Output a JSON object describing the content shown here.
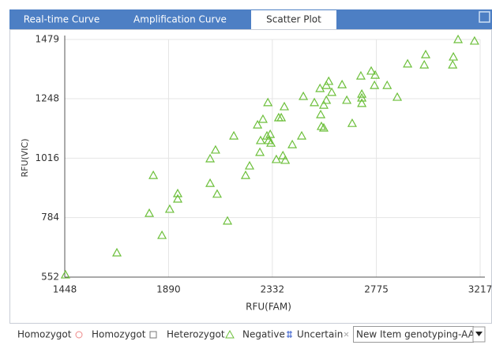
{
  "tabs": [
    "Real-time Curve",
    "Amplification Curve",
    "Scatter Plot"
  ],
  "chart_data": {
    "type": "scatter",
    "x_label": "RFU(FAM)",
    "y_label": "RFU(VIC)",
    "color": "#6cbf3a",
    "grid": true,
    "xlim": [
      1448,
      3217
    ],
    "xticks": [
      1448,
      1890,
      2332,
      2775,
      3217
    ],
    "ylim": [
      552,
      1479
    ],
    "yticks": [
      552,
      784,
      1016,
      1248,
      1479
    ],
    "series": [
      {
        "name": "Heterozygot",
        "color": "#6cbf3a",
        "x": [
          1451,
          1670,
          1808,
          1825,
          1862,
          1895,
          1929,
          1929,
          2067,
          2067,
          2090,
          2097,
          2141,
          2168,
          2218,
          2235,
          2279,
          2269,
          2282,
          2292,
          2309,
          2316,
          2323,
          2313,
          2326,
          2349,
          2359,
          2370,
          2377,
          2387,
          2383,
          2417,
          2457,
          2464,
          2511,
          2535,
          2538,
          2541,
          2551,
          2551,
          2562,
          2562,
          2572,
          2585,
          2629,
          2649,
          2672,
          2709,
          2713,
          2713,
          2713,
          2753,
          2767,
          2770,
          2821,
          2864,
          2908,
          2979,
          2985,
          3100,
          3103,
          3123,
          3193
        ],
        "values": [
          561,
          647,
          801,
          949,
          715,
          817,
          857,
          878,
          918,
          1014,
          1048,
          876,
          771,
          1103,
          949,
          986,
          1039,
          1146,
          1085,
          1168,
          1103,
          1085,
          1109,
          1233,
          1075,
          1011,
          1174,
          1174,
          1026,
          1008,
          1217,
          1069,
          1103,
          1257,
          1233,
          1288,
          1186,
          1140,
          1223,
          1134,
          1242,
          1300,
          1316,
          1273,
          1303,
          1242,
          1152,
          1337,
          1266,
          1251,
          1230,
          1356,
          1300,
          1340,
          1300,
          1254,
          1384,
          1380,
          1420,
          1380,
          1411,
          1479,
          1473
        ]
      }
    ]
  },
  "legend": [
    "Homozygot",
    "Homozygot",
    "Heterozygot",
    "Negative",
    "Uncertain"
  ],
  "dropdown": "New Item genotyping-AA"
}
